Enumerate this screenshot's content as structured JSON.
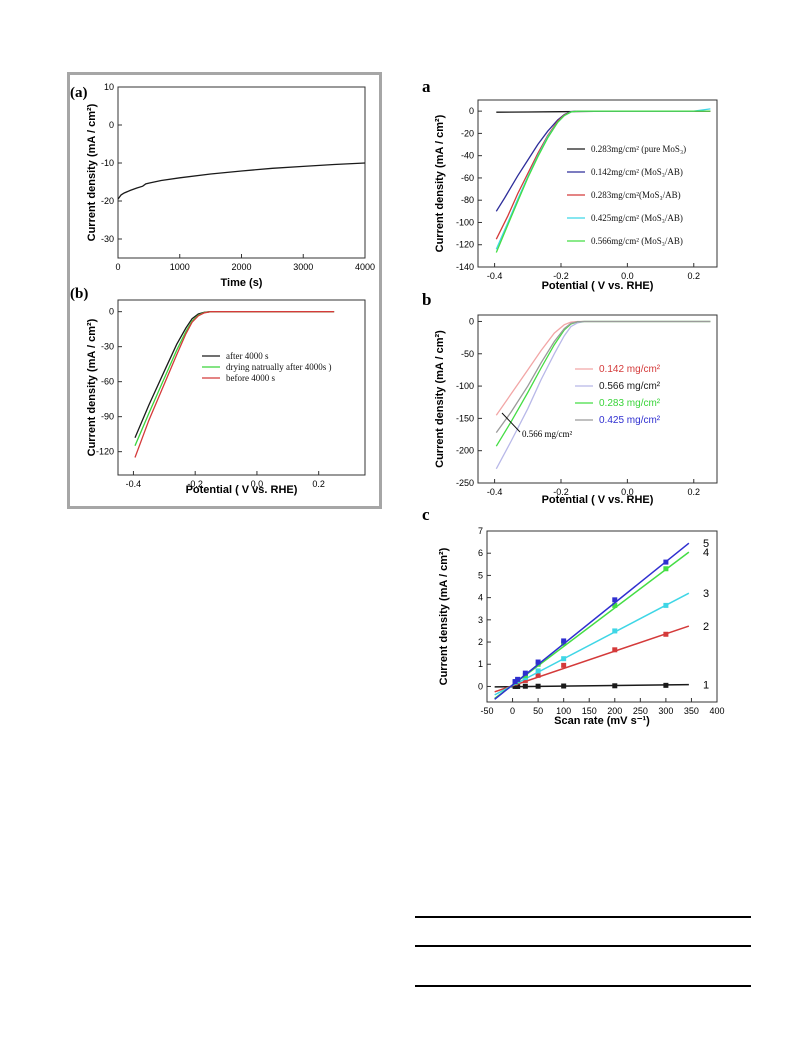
{
  "colors": {
    "black": "#1a1a1a",
    "green": "#3ad43a",
    "red": "#d43a3a",
    "navy": "#2d2d9a",
    "blue": "#2f2fd0",
    "cyan": "#3fd6e6",
    "pink": "#f2a6a6",
    "lgreen": "#44dd44",
    "lavender": "#b8b8e8",
    "gray": "#9a9a9a"
  },
  "chart_data": [
    {
      "panel": "(a)",
      "type": "line",
      "xlabel": "Time (s)",
      "ylabel": "Current density (mA / cm²)",
      "xlim": [
        0,
        4000
      ],
      "ylim": [
        -35,
        10
      ],
      "xticks": [
        0,
        1000,
        2000,
        3000,
        4000
      ],
      "yticks": [
        10,
        0,
        -10,
        -20,
        -30
      ],
      "series": [
        {
          "color": "black",
          "x": [
            0,
            50,
            100,
            200,
            300,
            400,
            450,
            500,
            700,
            1000,
            1500,
            2000,
            2500,
            3000,
            3500,
            4000
          ],
          "y": [
            -19.5,
            -18.4,
            -17.9,
            -17.2,
            -16.6,
            -16.1,
            -15.5,
            -15.3,
            -14.6,
            -13.9,
            -12.9,
            -12.1,
            -11.4,
            -10.9,
            -10.4,
            -10.0
          ]
        }
      ]
    },
    {
      "panel": "(b)",
      "type": "line",
      "xlabel": "Potential ( V vs. RHE)",
      "ylabel": "Current density (mA / cm²)",
      "xlim": [
        -0.45,
        0.35
      ],
      "ylim": [
        -140,
        10
      ],
      "xticks": [
        -0.4,
        -0.2,
        0.0,
        0.2
      ],
      "yticks": [
        0,
        -30,
        -60,
        -90,
        -120
      ],
      "legend_position": "middle-right",
      "series": [
        {
          "name": "after 4000 s",
          "color": "black",
          "x": [
            -0.395,
            -0.35,
            -0.3,
            -0.26,
            -0.23,
            -0.21,
            -0.19,
            -0.17,
            -0.15,
            -0.1,
            0.0,
            0.1,
            0.2,
            0.25
          ],
          "y": [
            -108,
            -80,
            -51,
            -28,
            -14,
            -6,
            -2,
            -0.5,
            0,
            0,
            0,
            0,
            0,
            0
          ]
        },
        {
          "name": "drying natrually after 4000s )",
          "color": "green",
          "x": [
            -0.395,
            -0.35,
            -0.3,
            -0.26,
            -0.23,
            -0.21,
            -0.19,
            -0.17,
            -0.15,
            -0.1,
            0.0,
            0.1,
            0.2,
            0.25
          ],
          "y": [
            -115,
            -87,
            -57,
            -33,
            -17,
            -8,
            -3,
            -0.7,
            0,
            0,
            0,
            0,
            0,
            0
          ]
        },
        {
          "name": "before 4000 s",
          "color": "red",
          "x": [
            -0.395,
            -0.35,
            -0.3,
            -0.26,
            -0.23,
            -0.21,
            -0.19,
            -0.17,
            -0.15,
            -0.1,
            0.0,
            0.1,
            0.2,
            0.25
          ],
          "y": [
            -125,
            -93,
            -62,
            -37,
            -19,
            -9,
            -3.5,
            -1,
            0,
            0,
            0,
            0,
            0,
            0
          ]
        }
      ]
    },
    {
      "panel": "a",
      "type": "line",
      "xlabel": "Potential ( V vs. RHE)",
      "ylabel": "Current density (mA / cm²)",
      "xlim": [
        -0.45,
        0.27
      ],
      "ylim": [
        -140,
        10
      ],
      "xticks": [
        -0.4,
        -0.2,
        0.0,
        0.2
      ],
      "yticks": [
        0,
        -20,
        -40,
        -60,
        -80,
        -100,
        -120,
        -140
      ],
      "legend_position": "right",
      "series": [
        {
          "name": "0.283mg/cm² (pure MoS₃)",
          "color": "black",
          "x": [
            -0.395,
            -0.3,
            -0.2,
            -0.1,
            0.0,
            0.1,
            0.2,
            0.25
          ],
          "y": [
            -1.0,
            -0.8,
            -0.5,
            -0.2,
            0,
            0,
            0,
            0
          ]
        },
        {
          "name": "0.142mg/cm² (MoS₃/AB)",
          "color": "navy",
          "x": [
            -0.395,
            -0.37,
            -0.35,
            -0.33,
            -0.3,
            -0.27,
            -0.24,
            -0.21,
            -0.19,
            -0.17,
            -0.15,
            0.0,
            0.25
          ],
          "y": [
            -90,
            -78,
            -68,
            -58,
            -44,
            -30,
            -18,
            -8,
            -3,
            -0.5,
            0,
            0,
            0
          ]
        },
        {
          "name": "0.283mg/cm²(MoS₃/AB)",
          "color": "red",
          "x": [
            -0.395,
            -0.36,
            -0.33,
            -0.3,
            -0.27,
            -0.24,
            -0.21,
            -0.19,
            -0.17,
            -0.15,
            0.0,
            0.25
          ],
          "y": [
            -115,
            -94,
            -74,
            -56,
            -38,
            -22,
            -9,
            -3.5,
            -0.7,
            0,
            0,
            0
          ]
        },
        {
          "name": "0.425mg/cm² (MoS₃/AB)",
          "color": "cyan",
          "x": [
            -0.395,
            -0.36,
            -0.33,
            -0.3,
            -0.27,
            -0.24,
            -0.21,
            -0.19,
            -0.17,
            -0.15,
            0.0,
            0.2,
            0.25
          ],
          "y": [
            -124,
            -100,
            -79,
            -59,
            -40,
            -23,
            -10,
            -4,
            -0.8,
            0,
            0,
            0,
            2
          ]
        },
        {
          "name": "0.566mg/cm² (MoS₃/AB)",
          "color": "lgreen",
          "x": [
            -0.395,
            -0.36,
            -0.33,
            -0.3,
            -0.27,
            -0.24,
            -0.21,
            -0.19,
            -0.17,
            -0.15,
            0.0,
            0.25
          ],
          "y": [
            -127,
            -102,
            -81,
            -60,
            -41,
            -24,
            -10,
            -4,
            -0.8,
            0,
            0,
            0
          ]
        }
      ]
    },
    {
      "panel": "b",
      "type": "line",
      "xlabel": "Potential ( V vs. RHE)",
      "ylabel": "Current density (mA / cm²)",
      "xlim": [
        -0.45,
        0.27
      ],
      "ylim": [
        -250,
        10
      ],
      "xticks": [
        -0.4,
        -0.2,
        0.0,
        0.2
      ],
      "yticks": [
        0,
        -50,
        -100,
        -150,
        -200,
        -250
      ],
      "legend_position": "right",
      "annotation": "0.566 mg/cm²",
      "series": [
        {
          "name": "0.142 mg/cm²",
          "label_color": "red",
          "color": "pink",
          "x": [
            -0.395,
            -0.35,
            -0.3,
            -0.26,
            -0.22,
            -0.19,
            -0.17,
            -0.15,
            0.0,
            0.25
          ],
          "y": [
            -145,
            -112,
            -75,
            -45,
            -18,
            -5,
            -1,
            0,
            0,
            0
          ]
        },
        {
          "name": "0.566 mg/cm²",
          "label_color": "black",
          "color": "lavender",
          "x": [
            -0.395,
            -0.35,
            -0.3,
            -0.26,
            -0.22,
            -0.19,
            -0.17,
            -0.15,
            -0.13,
            0.0,
            0.25
          ],
          "y": [
            -228,
            -185,
            -135,
            -90,
            -50,
            -22,
            -8,
            -2,
            0,
            0,
            0
          ]
        },
        {
          "name": "0.283 mg/cm²",
          "label_color": "green",
          "color": "lgreen",
          "x": [
            -0.395,
            -0.35,
            -0.3,
            -0.26,
            -0.22,
            -0.19,
            -0.17,
            -0.15,
            -0.13,
            0.0,
            0.25
          ],
          "y": [
            -193,
            -155,
            -110,
            -72,
            -36,
            -13,
            -4,
            -0.5,
            0,
            0,
            0
          ]
        },
        {
          "name": "0.425 mg/cm²",
          "label_color": "blue",
          "color": "gray",
          "x": [
            -0.395,
            -0.35,
            -0.3,
            -0.26,
            -0.22,
            -0.19,
            -0.17,
            -0.15,
            -0.13,
            0.0,
            0.25
          ],
          "y": [
            -172,
            -140,
            -100,
            -64,
            -31,
            -11,
            -3,
            -0.5,
            0,
            0,
            0
          ]
        }
      ]
    },
    {
      "panel": "c",
      "type": "scatter",
      "xlabel": "Scan rate (mV s⁻¹)",
      "ylabel": "Current density (mA / cm²)",
      "xlim": [
        -50,
        400
      ],
      "ylim": [
        -0.7,
        7
      ],
      "xticks": [
        -50,
        0,
        50,
        100,
        150,
        200,
        250,
        300,
        350,
        400
      ],
      "yticks": [
        0,
        1,
        2,
        3,
        4,
        5,
        6,
        7
      ],
      "series": [
        {
          "name": "1",
          "color": "black",
          "x": [
            5,
            10,
            25,
            50,
            100,
            200,
            300
          ],
          "y": [
            0.0,
            0.0,
            0.01,
            0.01,
            0.02,
            0.03,
            0.05
          ],
          "fit": [
            [
              -35,
              -0.02
            ],
            [
              345,
              0.08
            ]
          ]
        },
        {
          "name": "2",
          "color": "red",
          "x": [
            5,
            10,
            25,
            50,
            100,
            200,
            300
          ],
          "y": [
            0.15,
            0.2,
            0.27,
            0.5,
            0.95,
            1.65,
            2.35
          ],
          "fit": [
            [
              -35,
              -0.24
            ],
            [
              345,
              2.72
            ]
          ]
        },
        {
          "name": "3",
          "color": "cyan",
          "x": [
            5,
            10,
            25,
            50,
            100,
            200,
            300
          ],
          "y": [
            0.18,
            0.25,
            0.4,
            0.7,
            1.25,
            2.5,
            3.65
          ],
          "fit": [
            [
              -35,
              -0.38
            ],
            [
              345,
              4.2
            ]
          ]
        },
        {
          "name": "4",
          "color": "lgreen",
          "x": [
            5,
            10,
            25,
            50,
            100,
            200,
            300
          ],
          "y": [
            0.2,
            0.3,
            0.5,
            1.0,
            1.95,
            3.65,
            5.3
          ],
          "fit": [
            [
              -35,
              -0.54
            ],
            [
              345,
              6.05
            ]
          ]
        },
        {
          "name": "5",
          "color": "blue",
          "x": [
            5,
            10,
            25,
            50,
            100,
            200,
            300
          ],
          "y": [
            0.22,
            0.32,
            0.6,
            1.1,
            2.05,
            3.9,
            5.6
          ],
          "fit": [
            [
              -35,
              -0.58
            ],
            [
              345,
              6.45
            ]
          ]
        }
      ]
    }
  ]
}
